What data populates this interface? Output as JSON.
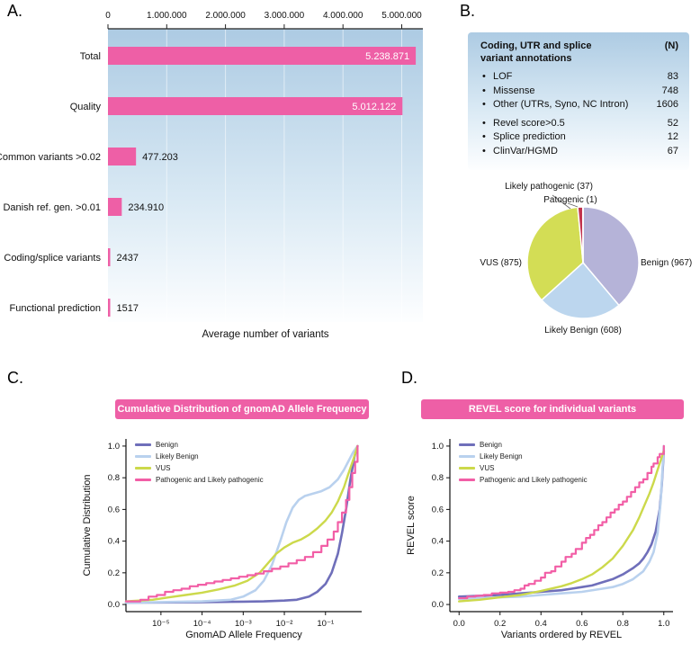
{
  "panels": {
    "a": "A.",
    "b": "B.",
    "c": "C.",
    "d": "D."
  },
  "colors": {
    "accent_pink": "#ee5fa6",
    "panel_gradient_top": "#adcbe3",
    "panel_gradient_mid": "#d9e9f4",
    "panel_gradient_bottom": "#fdfeff"
  },
  "panelB": {
    "table": {
      "header": "Coding, UTR and splice\nvariant annotations",
      "header_col": "(N)",
      "rows": [
        {
          "label": "LOF",
          "value": "83"
        },
        {
          "label": "Missense",
          "value": "748"
        },
        {
          "label": "Other (UTRs, Syno, NC Intron)",
          "value": "1606"
        },
        {
          "label": "Revel score>0.5",
          "value": "52"
        },
        {
          "label": "Splice prediction",
          "value": "12"
        },
        {
          "label": "ClinVar/HGMD",
          "value": "67"
        }
      ]
    }
  },
  "chart_data": [
    {
      "id": "A",
      "type": "bar",
      "orientation": "horizontal",
      "xlabel": "Average number of variants",
      "categories": [
        "Total",
        "Quality",
        "Common variants >0.02",
        "Danish ref. gen. >0.01",
        "Coding/splice variants",
        "Functional prediction"
      ],
      "values": [
        5238871,
        5012122,
        477203,
        234910,
        2437,
        1517
      ],
      "value_labels": [
        "5.238.871",
        "5.012.122",
        "477.203",
        "234.910",
        "2437",
        "1517"
      ],
      "axis_ticks": [
        0,
        1000000,
        2000000,
        3000000,
        4000000,
        5000000
      ],
      "axis_tick_labels": [
        "0",
        "1.000.000",
        "2.000.000",
        "3.000.000",
        "4.000.000",
        "5.000.000"
      ],
      "xlim": [
        0,
        5360000
      ],
      "bar_color": "#ee5fa6",
      "label_inside": [
        true,
        true,
        false,
        false,
        false,
        false
      ]
    },
    {
      "id": "B",
      "type": "pie",
      "labels": [
        "Benign",
        "Likely Benign",
        "VUS",
        "Likely pathogenic",
        "Patogenic"
      ],
      "values": [
        967,
        608,
        875,
        37,
        1
      ],
      "display_labels": [
        "Benign (967)",
        "Likely Benign (608)",
        "VUS (875)",
        "Likely pathogenic (37)",
        "Patogenic (1)"
      ],
      "colors": [
        "#b5b3d8",
        "#bcd6ee",
        "#d3dd55",
        "#c2334d",
        "#7d1128"
      ],
      "start_angle_deg": -90,
      "direction": "clockwise"
    },
    {
      "id": "C",
      "type": "line",
      "title": "Cumulative Distribution of gnomAD Allele Frequency",
      "xlabel": "GnomAD Allele Frequency",
      "ylabel": "Cumulative Distribution",
      "xscale": "log",
      "xlim_log10": [
        -5.85,
        -0.12
      ],
      "ylim": [
        0,
        1
      ],
      "x_ticks_log10": [
        -5,
        -4,
        -3,
        -2,
        -1
      ],
      "x_tick_labels": [
        "10⁻⁵",
        "10⁻⁴",
        "10⁻³",
        "10⁻²",
        "10⁻¹"
      ],
      "y_ticks": [
        0,
        0.2,
        0.4,
        0.6,
        0.8,
        1.0
      ],
      "y_tick_labels": [
        "0.0",
        "0.2",
        "0.4",
        "0.6",
        "0.8",
        "1.0"
      ],
      "legend_position": "top-left",
      "series": [
        {
          "name": "Benign",
          "color": "#6f6fba",
          "width": 2.6,
          "step": false,
          "points": [
            [
              -5.85,
              0.012
            ],
            [
              -5.0,
              0.013
            ],
            [
              -4.0,
              0.015
            ],
            [
              -3.0,
              0.018
            ],
            [
              -2.5,
              0.02
            ],
            [
              -2.0,
              0.025
            ],
            [
              -1.7,
              0.03
            ],
            [
              -1.4,
              0.05
            ],
            [
              -1.2,
              0.08
            ],
            [
              -1.0,
              0.13
            ],
            [
              -0.85,
              0.2
            ],
            [
              -0.7,
              0.32
            ],
            [
              -0.6,
              0.45
            ],
            [
              -0.5,
              0.6
            ],
            [
              -0.4,
              0.78
            ],
            [
              -0.3,
              0.93
            ],
            [
              -0.22,
              1.0
            ]
          ]
        },
        {
          "name": "Likely Benign",
          "color": "#b9d1ee",
          "width": 2.6,
          "step": false,
          "points": [
            [
              -5.85,
              0.012
            ],
            [
              -5.0,
              0.015
            ],
            [
              -4.0,
              0.02
            ],
            [
              -3.3,
              0.03
            ],
            [
              -3.0,
              0.05
            ],
            [
              -2.7,
              0.09
            ],
            [
              -2.5,
              0.15
            ],
            [
              -2.3,
              0.25
            ],
            [
              -2.1,
              0.4
            ],
            [
              -1.95,
              0.52
            ],
            [
              -1.8,
              0.61
            ],
            [
              -1.65,
              0.66
            ],
            [
              -1.5,
              0.685
            ],
            [
              -1.3,
              0.7
            ],
            [
              -1.1,
              0.715
            ],
            [
              -0.9,
              0.74
            ],
            [
              -0.7,
              0.79
            ],
            [
              -0.55,
              0.85
            ],
            [
              -0.45,
              0.9
            ],
            [
              -0.33,
              0.96
            ],
            [
              -0.22,
              1.0
            ]
          ]
        },
        {
          "name": "VUS",
          "color": "#ccd94b",
          "width": 2.4,
          "step": false,
          "points": [
            [
              -5.85,
              0.02
            ],
            [
              -5.2,
              0.03
            ],
            [
              -4.8,
              0.045
            ],
            [
              -4.4,
              0.06
            ],
            [
              -4.0,
              0.075
            ],
            [
              -3.6,
              0.095
            ],
            [
              -3.2,
              0.12
            ],
            [
              -2.9,
              0.15
            ],
            [
              -2.6,
              0.2
            ],
            [
              -2.4,
              0.26
            ],
            [
              -2.2,
              0.32
            ],
            [
              -2.0,
              0.36
            ],
            [
              -1.8,
              0.39
            ],
            [
              -1.6,
              0.41
            ],
            [
              -1.4,
              0.44
            ],
            [
              -1.2,
              0.48
            ],
            [
              -1.0,
              0.53
            ],
            [
              -0.85,
              0.58
            ],
            [
              -0.7,
              0.65
            ],
            [
              -0.55,
              0.74
            ],
            [
              -0.45,
              0.82
            ],
            [
              -0.33,
              0.91
            ],
            [
              -0.22,
              1.0
            ]
          ]
        },
        {
          "name": "Pathogenic and Likely pathogenic",
          "color": "#f25ea6",
          "width": 2.2,
          "step": true,
          "points": [
            [
              -5.85,
              0.02
            ],
            [
              -5.5,
              0.03
            ],
            [
              -5.3,
              0.05
            ],
            [
              -5.1,
              0.06
            ],
            [
              -4.9,
              0.08
            ],
            [
              -4.7,
              0.09
            ],
            [
              -4.5,
              0.1
            ],
            [
              -4.3,
              0.115
            ],
            [
              -4.1,
              0.125
            ],
            [
              -3.9,
              0.135
            ],
            [
              -3.7,
              0.145
            ],
            [
              -3.5,
              0.155
            ],
            [
              -3.3,
              0.165
            ],
            [
              -3.1,
              0.175
            ],
            [
              -2.9,
              0.185
            ],
            [
              -2.7,
              0.195
            ],
            [
              -2.5,
              0.21
            ],
            [
              -2.3,
              0.225
            ],
            [
              -2.1,
              0.24
            ],
            [
              -1.9,
              0.26
            ],
            [
              -1.7,
              0.28
            ],
            [
              -1.5,
              0.3
            ],
            [
              -1.3,
              0.33
            ],
            [
              -1.1,
              0.37
            ],
            [
              -0.95,
              0.41
            ],
            [
              -0.8,
              0.46
            ],
            [
              -0.7,
              0.52
            ],
            [
              -0.6,
              0.58
            ],
            [
              -0.5,
              0.66
            ],
            [
              -0.42,
              0.74
            ],
            [
              -0.35,
              0.83
            ],
            [
              -0.28,
              0.9
            ],
            [
              -0.22,
              1.0
            ]
          ]
        }
      ]
    },
    {
      "id": "D",
      "type": "line",
      "title": "REVEL score for individual variants",
      "xlabel": "Variants ordered by REVEL",
      "ylabel": "REVEL score",
      "xscale": "linear",
      "xlim": [
        0,
        1
      ],
      "ylim": [
        0,
        1
      ],
      "x_ticks": [
        0,
        0.2,
        0.4,
        0.6,
        0.8,
        1.0
      ],
      "x_tick_labels": [
        "0.0",
        "0.2",
        "0.4",
        "0.6",
        "0.8",
        "1.0"
      ],
      "y_ticks": [
        0,
        0.2,
        0.4,
        0.6,
        0.8,
        1.0
      ],
      "y_tick_labels": [
        "0.0",
        "0.2",
        "0.4",
        "0.6",
        "0.8",
        "1.0"
      ],
      "legend_position": "top-left",
      "series": [
        {
          "name": "Benign",
          "color": "#6f6fba",
          "width": 2.6,
          "step": false,
          "points": [
            [
              0,
              0.05
            ],
            [
              0.1,
              0.055
            ],
            [
              0.2,
              0.06
            ],
            [
              0.3,
              0.07
            ],
            [
              0.4,
              0.08
            ],
            [
              0.5,
              0.09
            ],
            [
              0.55,
              0.1
            ],
            [
              0.6,
              0.11
            ],
            [
              0.65,
              0.12
            ],
            [
              0.7,
              0.14
            ],
            [
              0.75,
              0.16
            ],
            [
              0.8,
              0.19
            ],
            [
              0.85,
              0.23
            ],
            [
              0.88,
              0.26
            ],
            [
              0.9,
              0.29
            ],
            [
              0.92,
              0.33
            ],
            [
              0.94,
              0.38
            ],
            [
              0.96,
              0.46
            ],
            [
              0.98,
              0.6
            ],
            [
              0.99,
              0.75
            ],
            [
              1.0,
              0.97
            ]
          ]
        },
        {
          "name": "Likely Benign",
          "color": "#b9d1ee",
          "width": 2.6,
          "step": false,
          "points": [
            [
              0,
              0.035
            ],
            [
              0.1,
              0.04
            ],
            [
              0.2,
              0.045
            ],
            [
              0.3,
              0.05
            ],
            [
              0.4,
              0.06
            ],
            [
              0.5,
              0.07
            ],
            [
              0.6,
              0.08
            ],
            [
              0.7,
              0.1
            ],
            [
              0.75,
              0.11
            ],
            [
              0.8,
              0.13
            ],
            [
              0.85,
              0.16
            ],
            [
              0.9,
              0.21
            ],
            [
              0.93,
              0.27
            ],
            [
              0.95,
              0.33
            ],
            [
              0.97,
              0.45
            ],
            [
              0.985,
              0.65
            ],
            [
              1.0,
              1.0
            ]
          ]
        },
        {
          "name": "VUS",
          "color": "#ccd94b",
          "width": 2.4,
          "step": false,
          "points": [
            [
              0,
              0.02
            ],
            [
              0.1,
              0.03
            ],
            [
              0.2,
              0.045
            ],
            [
              0.3,
              0.06
            ],
            [
              0.4,
              0.085
            ],
            [
              0.5,
              0.115
            ],
            [
              0.55,
              0.135
            ],
            [
              0.6,
              0.16
            ],
            [
              0.65,
              0.19
            ],
            [
              0.7,
              0.235
            ],
            [
              0.75,
              0.29
            ],
            [
              0.8,
              0.37
            ],
            [
              0.85,
              0.47
            ],
            [
              0.88,
              0.55
            ],
            [
              0.9,
              0.61
            ],
            [
              0.93,
              0.7
            ],
            [
              0.95,
              0.77
            ],
            [
              0.97,
              0.85
            ],
            [
              0.99,
              0.93
            ],
            [
              1.0,
              0.97
            ]
          ]
        },
        {
          "name": "Pathogenic and Likely pathogenic",
          "color": "#f25ea6",
          "width": 2.2,
          "step": true,
          "points": [
            [
              0,
              0.04
            ],
            [
              0.04,
              0.05
            ],
            [
              0.08,
              0.055
            ],
            [
              0.12,
              0.06
            ],
            [
              0.16,
              0.07
            ],
            [
              0.2,
              0.075
            ],
            [
              0.24,
              0.08
            ],
            [
              0.27,
              0.09
            ],
            [
              0.3,
              0.1
            ],
            [
              0.32,
              0.12
            ],
            [
              0.34,
              0.13
            ],
            [
              0.37,
              0.15
            ],
            [
              0.4,
              0.17
            ],
            [
              0.42,
              0.2
            ],
            [
              0.45,
              0.21
            ],
            [
              0.47,
              0.24
            ],
            [
              0.5,
              0.27
            ],
            [
              0.52,
              0.3
            ],
            [
              0.55,
              0.32
            ],
            [
              0.57,
              0.35
            ],
            [
              0.6,
              0.39
            ],
            [
              0.62,
              0.42
            ],
            [
              0.64,
              0.44
            ],
            [
              0.66,
              0.47
            ],
            [
              0.68,
              0.5
            ],
            [
              0.7,
              0.52
            ],
            [
              0.72,
              0.55
            ],
            [
              0.74,
              0.58
            ],
            [
              0.76,
              0.6
            ],
            [
              0.78,
              0.63
            ],
            [
              0.8,
              0.65
            ],
            [
              0.82,
              0.68
            ],
            [
              0.84,
              0.71
            ],
            [
              0.86,
              0.74
            ],
            [
              0.88,
              0.77
            ],
            [
              0.9,
              0.79
            ],
            [
              0.92,
              0.83
            ],
            [
              0.94,
              0.87
            ],
            [
              0.95,
              0.89
            ],
            [
              0.97,
              0.93
            ],
            [
              0.98,
              0.95
            ],
            [
              1.0,
              1.0
            ]
          ]
        }
      ]
    }
  ]
}
